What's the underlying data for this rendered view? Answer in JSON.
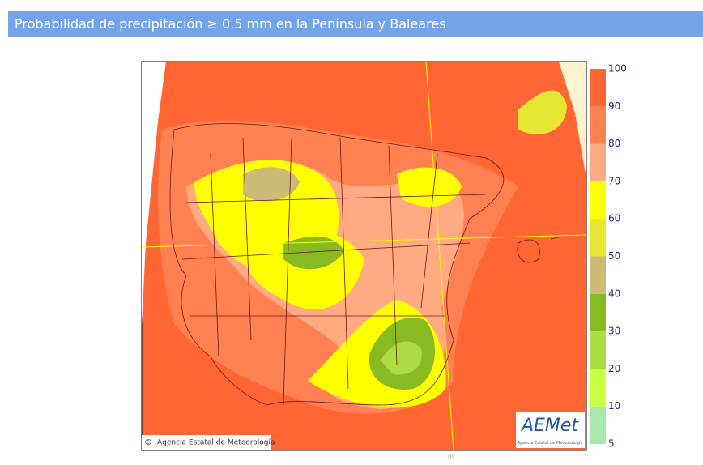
{
  "header": {
    "title": "Probabilidad de precipitación ≥ 0.5 mm en la Península y Baleares"
  },
  "map": {
    "credit": "Agencia Estatal de Meteorología",
    "copyright": "©",
    "logo": "AEMet",
    "logo_caption": "Agencia Estatal de Meteorología",
    "tick": "0º"
  },
  "legend": {
    "labels": [
      "100",
      "90",
      "80",
      "70",
      "60",
      "50",
      "40",
      "30",
      "20",
      "10",
      "5"
    ],
    "colors": [
      "#ff6633",
      "#ff8050",
      "#ffaa80",
      "#ffff00",
      "#e6e633",
      "#ccbb77",
      "#88bb22",
      "#aadd44",
      "#ccff44",
      "#aae8aa"
    ]
  }
}
